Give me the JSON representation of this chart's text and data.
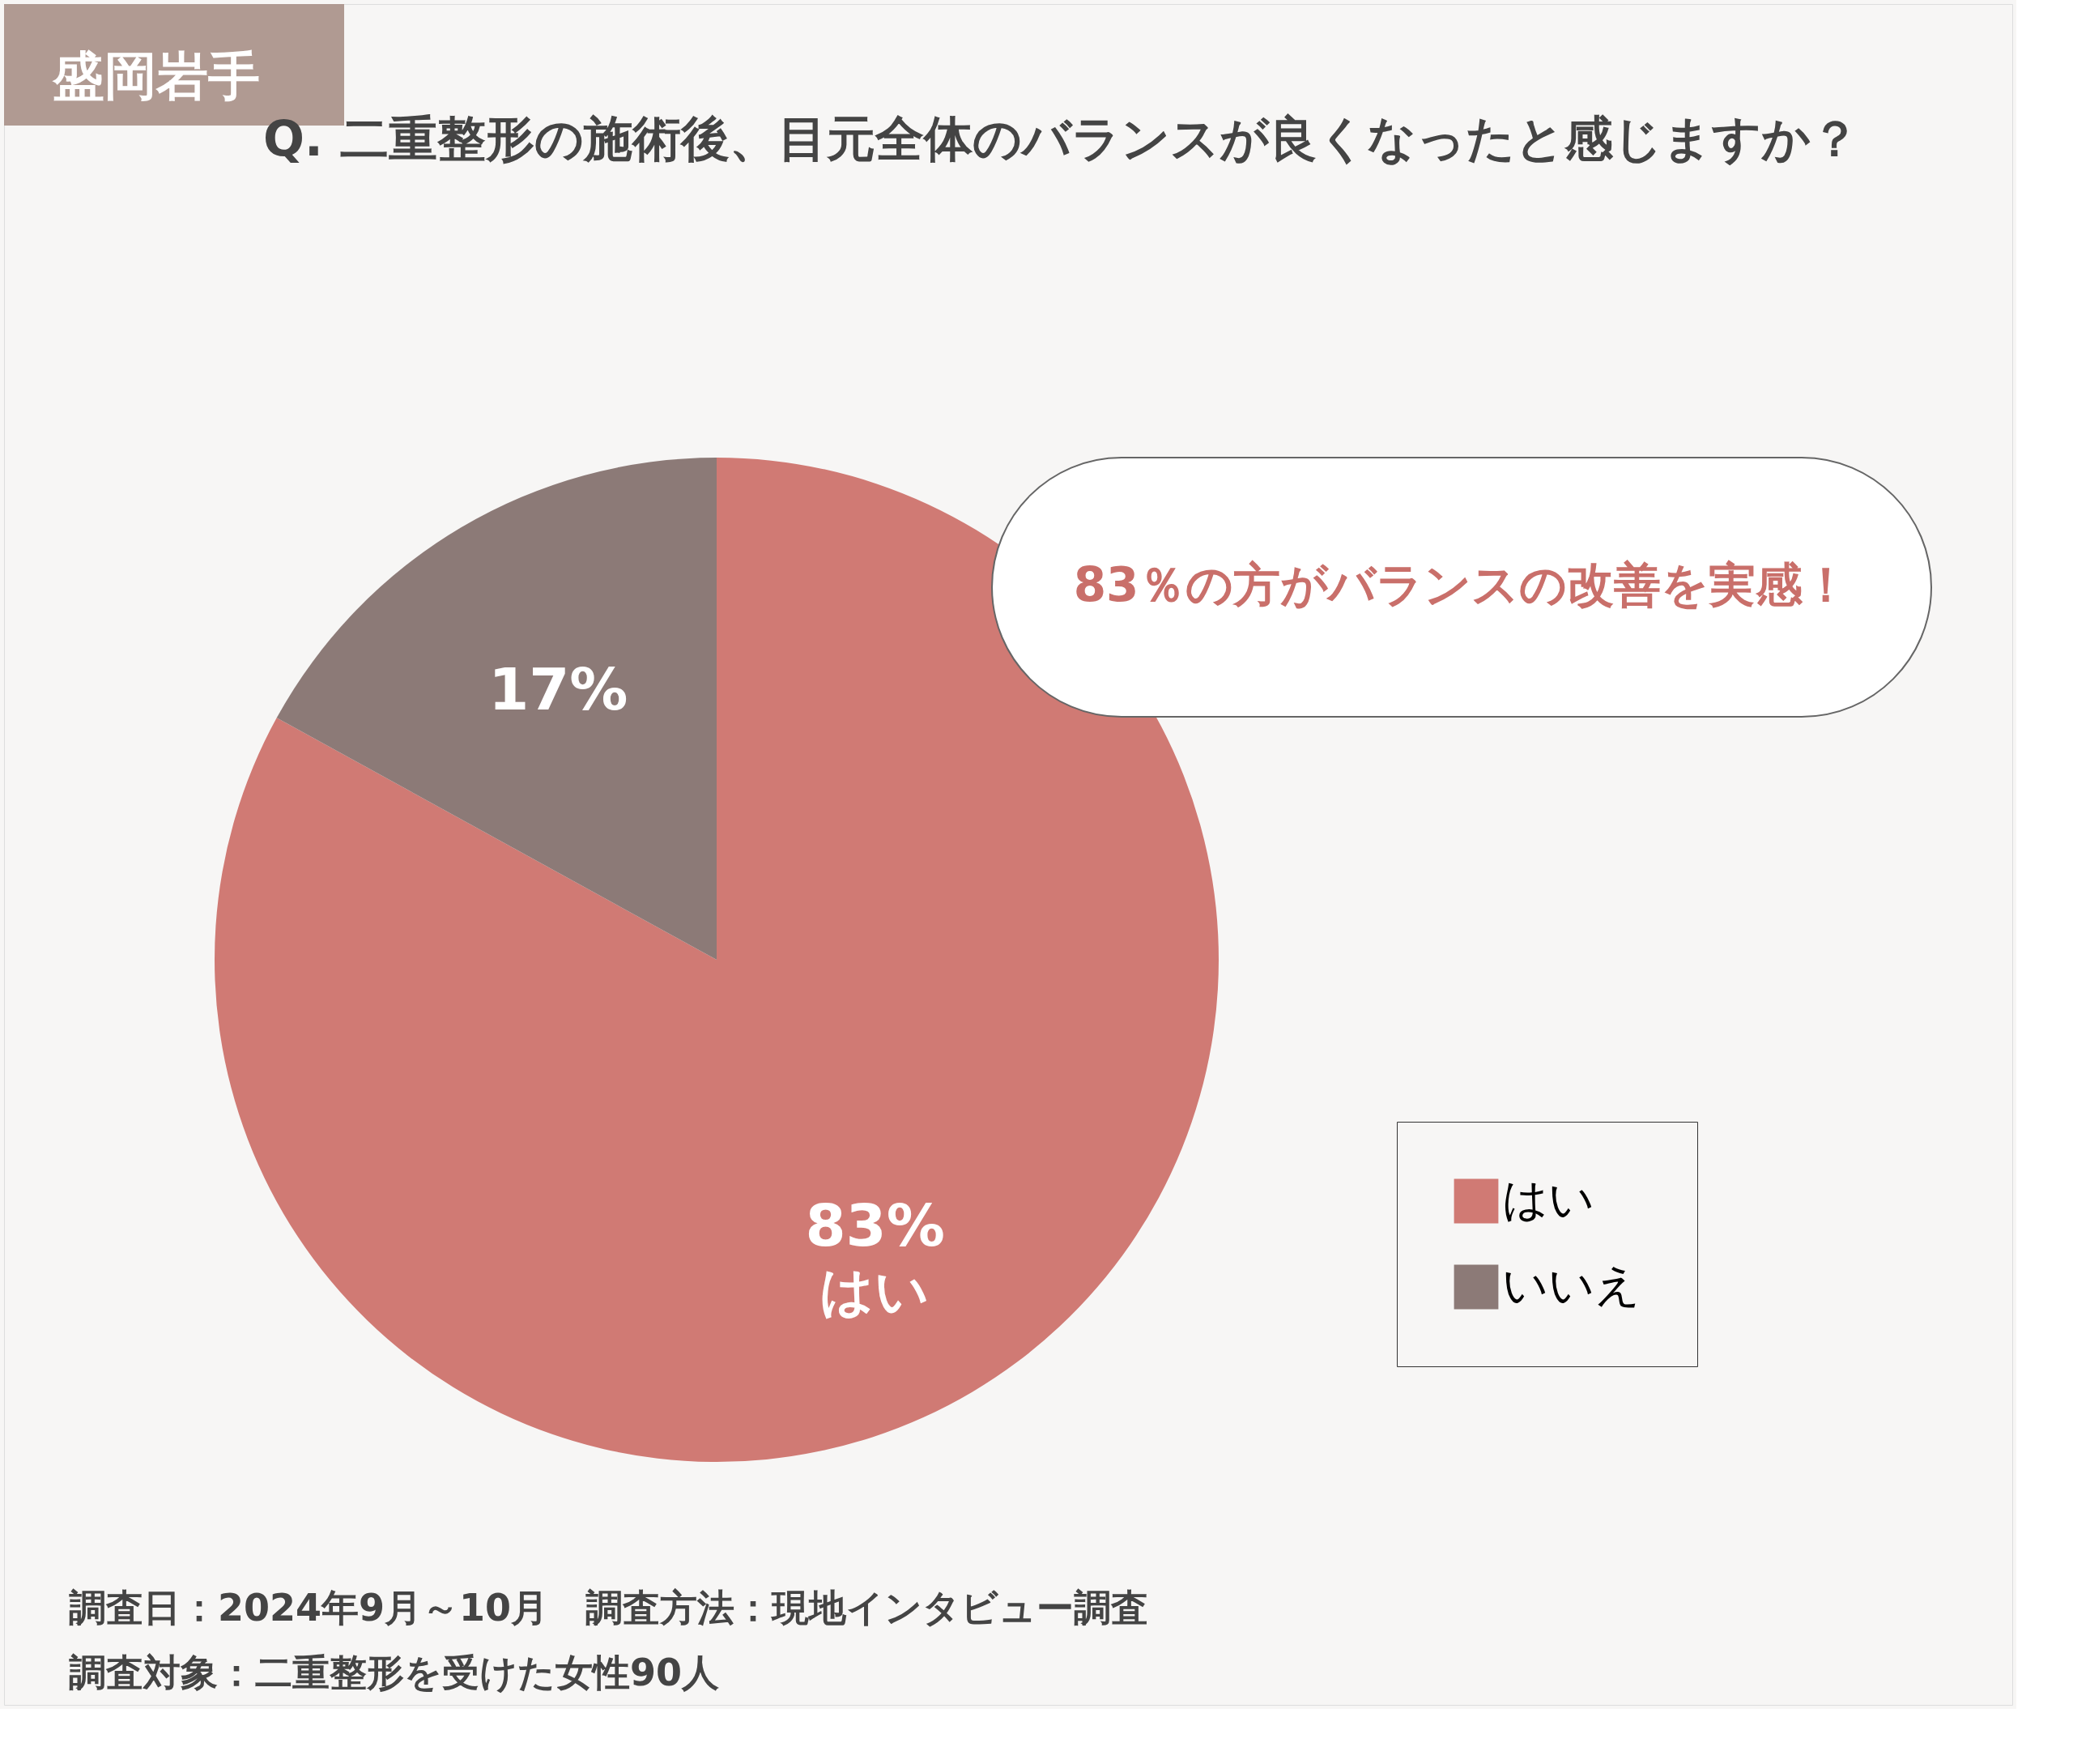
{
  "chart_data": {
    "type": "pie",
    "title": "Q. 二重整形の施術後、目元全体のバランスが良くなったと感じますか？",
    "categories": [
      "はい",
      "いいえ"
    ],
    "values": [
      83,
      17
    ],
    "colors": [
      "#d07a74",
      "#8c7a77"
    ],
    "value_labels": [
      "83%",
      "17%"
    ],
    "legend": "right",
    "annotations": [
      "盛岡岩手",
      "83％の方がバランスの改善を実感！",
      "はい",
      "調査日：2024年9月～10月　調査方法：現地インタビュー調査",
      "調査対象：二重整形を受けた女性90人"
    ]
  }
}
